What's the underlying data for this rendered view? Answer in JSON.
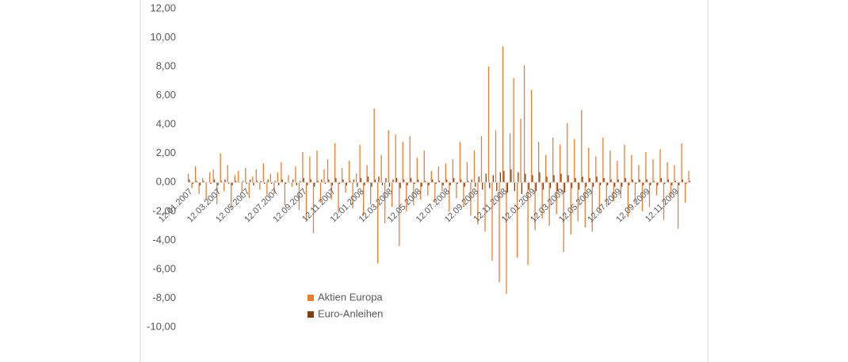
{
  "chart_data": {
    "type": "bar",
    "categories": [
      "12.01.2007",
      null,
      null,
      null,
      null,
      null,
      null,
      null,
      "12.03.2007",
      null,
      null,
      null,
      null,
      null,
      null,
      null,
      "12.05.2007",
      null,
      null,
      null,
      null,
      null,
      null,
      null,
      "12.07.2007",
      null,
      null,
      null,
      null,
      null,
      null,
      null,
      "12.09.2007",
      null,
      null,
      null,
      null,
      null,
      null,
      null,
      "12.11.2007",
      null,
      null,
      null,
      null,
      null,
      null,
      null,
      "12.01.2008",
      null,
      null,
      null,
      null,
      null,
      null,
      null,
      "12.03.2008",
      null,
      null,
      null,
      null,
      null,
      null,
      null,
      "12.05.2008",
      null,
      null,
      null,
      null,
      null,
      null,
      null,
      "12.07.2008",
      null,
      null,
      null,
      null,
      null,
      null,
      null,
      "12.09.2008",
      null,
      null,
      null,
      null,
      null,
      null,
      null,
      "12.11.2008",
      null,
      null,
      null,
      null,
      null,
      null,
      null,
      "12.01.2009",
      null,
      null,
      null,
      null,
      null,
      null,
      null,
      "12.03.2009",
      null,
      null,
      null,
      null,
      null,
      null,
      null,
      "12.05.2009",
      null,
      null,
      null,
      null,
      null,
      null,
      null,
      "12.07.2009",
      null,
      null,
      null,
      null,
      null,
      null,
      null,
      "12.09.2009",
      null,
      null,
      null,
      null,
      null,
      null,
      null,
      "12.11.2009",
      null,
      null,
      null,
      null
    ],
    "series": [
      {
        "name": "Aktien Europa",
        "color": "#ED7D31",
        "values": [
          0.6,
          -0.4,
          1.1,
          -0.8,
          0.3,
          -1.2,
          0.7,
          0.9,
          -1.5,
          2.0,
          -0.6,
          1.2,
          -1.8,
          0.5,
          0.8,
          -0.7,
          1.0,
          -1.1,
          0.4,
          0.9,
          -0.5,
          1.3,
          -0.9,
          0.6,
          -0.8,
          0.7,
          1.4,
          -1.6,
          0.5,
          -0.3,
          1.1,
          -1.9,
          2.1,
          -2.6,
          1.8,
          -3.5,
          2.2,
          -1.4,
          0.9,
          1.6,
          -1.2,
          2.7,
          -2.1,
          1.0,
          -0.7,
          1.5,
          -1.8,
          0.6,
          2.6,
          -2.3,
          1.2,
          -1.5,
          5.1,
          -5.6,
          1.9,
          -2.8,
          3.6,
          -1.7,
          3.3,
          -4.4,
          2.8,
          -2.0,
          3.2,
          -1.6,
          1.7,
          -1.2,
          2.2,
          -0.9,
          0.8,
          -1.4,
          1.1,
          -0.6,
          1.3,
          -2.0,
          1.6,
          -1.1,
          2.8,
          -1.7,
          1.4,
          -2.3,
          2.2,
          -2.9,
          3.2,
          -3.4,
          8.0,
          -5.4,
          3.6,
          -6.9,
          9.4,
          -7.7,
          3.4,
          7.2,
          -5.2,
          4.4,
          8.1,
          -5.7,
          6.4,
          -3.3,
          2.8,
          -2.5,
          1.9,
          -3.0,
          3.1,
          -2.2,
          2.6,
          -4.8,
          4.1,
          -3.6,
          3.0,
          -2.7,
          5.0,
          -3.1,
          2.4,
          -3.4,
          1.8,
          -2.0,
          3.1,
          -1.6,
          2.2,
          -1.3,
          1.5,
          -1.1,
          2.6,
          -2.4,
          1.9,
          -1.5,
          1.2,
          -2.0,
          2.1,
          -1.7,
          1.6,
          -0.9,
          2.3,
          -2.6,
          1.4,
          -1.0,
          1.2,
          -3.2,
          2.7,
          -1.4,
          0.8
        ]
      },
      {
        "name": "Euro-Anleihen",
        "color": "#843C0C",
        "values": [
          0.2,
          -0.1,
          0.1,
          -0.2,
          0.1,
          0.0,
          -0.1,
          0.2,
          -0.2,
          0.1,
          0.2,
          -0.1,
          -0.2,
          0.1,
          0.0,
          0.1,
          -0.1,
          0.2,
          -0.2,
          0.1,
          0.1,
          -0.1,
          0.2,
          -0.1,
          0.1,
          -0.2,
          0.2,
          -0.1,
          0.0,
          0.2,
          -0.2,
          0.1,
          0.3,
          -0.2,
          0.2,
          -0.3,
          0.1,
          0.2,
          -0.1,
          0.2,
          -0.2,
          0.3,
          -0.1,
          0.2,
          -0.2,
          0.1,
          0.2,
          -0.3,
          0.3,
          -0.2,
          0.4,
          -0.3,
          0.2,
          0.4,
          -0.2,
          0.3,
          -0.3,
          0.2,
          0.3,
          -0.4,
          0.2,
          -0.2,
          0.3,
          -0.1,
          0.2,
          -0.3,
          0.1,
          -0.2,
          0.2,
          -0.1,
          0.1,
          -0.2,
          0.2,
          -0.2,
          0.3,
          -0.1,
          0.2,
          -0.3,
          0.1,
          0.2,
          -0.3,
          0.4,
          -0.5,
          0.6,
          -0.4,
          0.5,
          -0.6,
          0.7,
          0.8,
          -0.7,
          0.9,
          -0.6,
          0.7,
          -0.8,
          0.6,
          -0.5,
          0.5,
          -0.6,
          0.7,
          -0.5,
          0.4,
          -0.4,
          0.5,
          -0.6,
          0.6,
          -0.7,
          0.5,
          -0.4,
          0.3,
          -0.5,
          0.4,
          -0.3,
          0.3,
          -0.3,
          0.4,
          -0.2,
          0.3,
          -0.2,
          0.2,
          -0.3,
          0.2,
          -0.3,
          0.3,
          -0.2,
          0.2,
          -0.1,
          0.2,
          -0.2,
          0.2,
          -0.2,
          0.1,
          -0.2,
          0.3,
          -0.1,
          0.2,
          -0.2,
          0.1,
          -0.2,
          0.2,
          -0.1,
          0.1
        ]
      }
    ],
    "ylim": [
      -10,
      12
    ],
    "yticks": [
      {
        "value": -10,
        "label": "-10,00"
      },
      {
        "value": -8,
        "label": "-8,00"
      },
      {
        "value": -6,
        "label": "-6,00"
      },
      {
        "value": -4,
        "label": "-4,00"
      },
      {
        "value": -2,
        "label": "-2,00"
      },
      {
        "value": 0,
        "label": "0,00"
      },
      {
        "value": 2,
        "label": "2,00"
      },
      {
        "value": 4,
        "label": "4,00"
      },
      {
        "value": 6,
        "label": "6,00"
      },
      {
        "value": 8,
        "label": "8,00"
      },
      {
        "value": 10,
        "label": "10,00"
      },
      {
        "value": 12,
        "label": "12,00"
      }
    ],
    "grid": false,
    "legend": "bottom-left"
  }
}
